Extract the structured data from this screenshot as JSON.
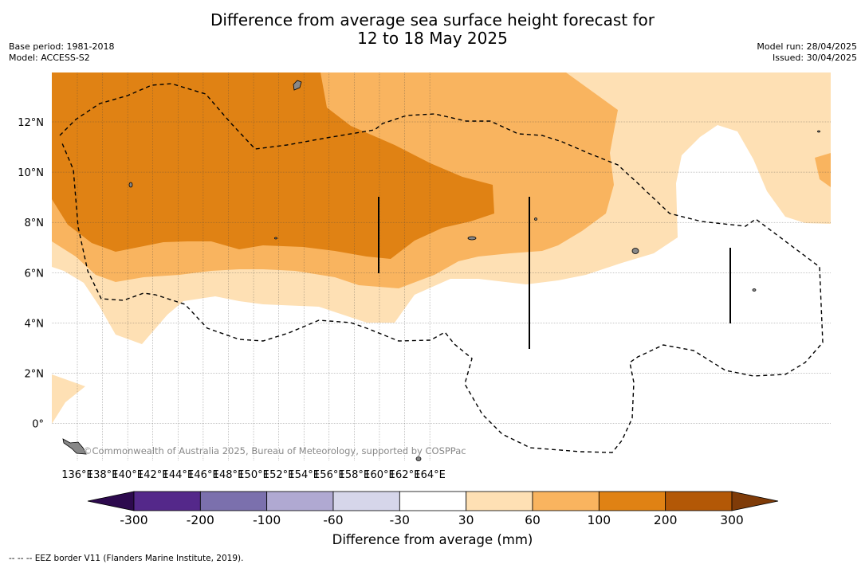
{
  "title_line1": "Difference from average sea surface height forecast for",
  "title_line2": "12 to 18 May 2025",
  "base_period": "Base period: 1981-2018",
  "model": "Model: ACCESS-S2",
  "model_run": "Model run: 28/04/2025",
  "issued": "Issued: 30/04/2025",
  "credit": "©Commonwealth of Australia 2025, Bureau of Meteorology, supported by COSPPac",
  "footnote": "-- -- -- EEZ border V11 (Flanders Marine Institute, 2019).",
  "lon_labels": [
    "136°E",
    "138°E",
    "140°E",
    "142°E",
    "144°E",
    "146°E",
    "148°E",
    "150°E",
    "152°E",
    "154°E",
    "156°E",
    "158°E",
    "160°E",
    "162°E",
    "164°E"
  ],
  "lat_labels": [
    "12°N",
    "10°N",
    "8°N",
    "6°N",
    "4°N",
    "2°N",
    "0°"
  ],
  "colorbar": {
    "title": "Difference from average (mm)",
    "ticks": [
      "-300",
      "-200",
      "-100",
      "-60",
      "-30",
      "30",
      "60",
      "100",
      "200",
      "300"
    ],
    "colors": [
      "#2d0a4e",
      "#54288a",
      "#7b70ad",
      "#b0a9d2",
      "#d6d6ea",
      "#ffffff",
      "#fee0b4",
      "#f9b45f",
      "#e08214",
      "#b35806",
      "#7f3b08"
    ]
  }
}
